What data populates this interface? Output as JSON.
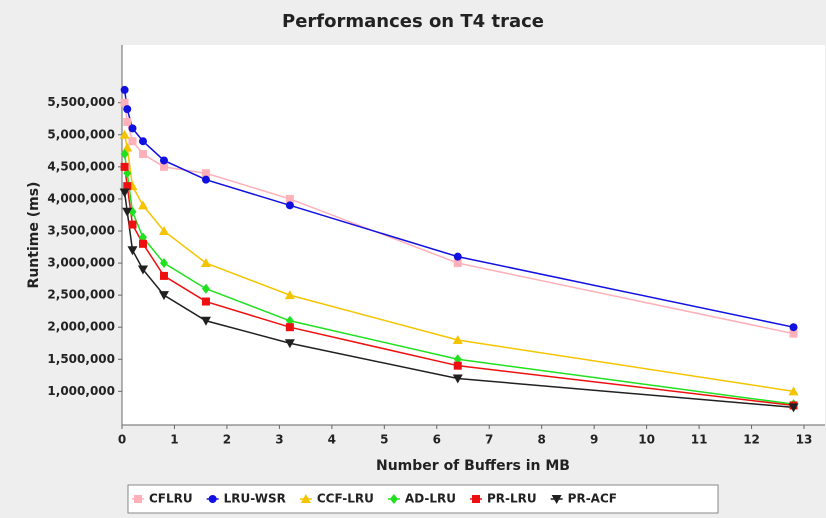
{
  "chart_data": {
    "type": "line",
    "title": "Performances on T4 trace",
    "xlabel": "Number of Buffers in MB",
    "ylabel": "Runtime (ms)",
    "x": [
      0.05,
      0.1,
      0.2,
      0.4,
      0.8,
      1.6,
      3.2,
      6.4,
      12.8
    ],
    "series": [
      {
        "name": "CFLRU",
        "color": "#ffb0b8",
        "marker": "square",
        "values": [
          5500000,
          5200000,
          4900000,
          4700000,
          4500000,
          4400000,
          4000000,
          3000000,
          1900000
        ]
      },
      {
        "name": "LRU-WSR",
        "color": "#1010e0",
        "marker": "circle",
        "values": [
          5700000,
          5400000,
          5100000,
          4900000,
          4600000,
          4300000,
          3900000,
          3100000,
          2000000
        ]
      },
      {
        "name": "CCF-LRU",
        "color": "#f5c400",
        "marker": "triangle-up",
        "values": [
          5000000,
          4800000,
          4200000,
          3900000,
          3500000,
          3000000,
          2500000,
          1800000,
          1000000
        ]
      },
      {
        "name": "AD-LRU",
        "color": "#20e020",
        "marker": "diamond",
        "values": [
          4700000,
          4400000,
          3800000,
          3400000,
          3000000,
          2600000,
          2100000,
          1500000,
          800000
        ]
      },
      {
        "name": "PR-LRU",
        "color": "#ee1010",
        "marker": "square",
        "values": [
          4500000,
          4200000,
          3600000,
          3300000,
          2800000,
          2400000,
          2000000,
          1400000,
          780000
        ]
      },
      {
        "name": "PR-ACF",
        "color": "#202020",
        "marker": "triangle-down",
        "values": [
          4100000,
          3800000,
          3200000,
          2900000,
          2500000,
          2100000,
          1750000,
          1200000,
          750000
        ]
      }
    ],
    "xlim": [
      0,
      13.4
    ],
    "xticks": [
      0,
      1,
      2,
      3,
      4,
      5,
      6,
      7,
      8,
      9,
      10,
      11,
      12,
      13
    ],
    "ylim": [
      475000,
      6400000
    ],
    "yticks": [
      {
        "value": 1000000,
        "label": "1,000,000"
      },
      {
        "value": 1500000,
        "label": "1,500,000"
      },
      {
        "value": 2000000,
        "label": "2,000,000"
      },
      {
        "value": 2500000,
        "label": "2,500,000"
      },
      {
        "value": 3000000,
        "label": "3,000,000"
      },
      {
        "value": 3500000,
        "label": "3,500,000"
      },
      {
        "value": 4000000,
        "label": "4,000,000"
      },
      {
        "value": 4500000,
        "label": "4,500,000"
      },
      {
        "value": 5000000,
        "label": "5,000,000"
      },
      {
        "value": 5500000,
        "label": "5,500,000"
      }
    ],
    "grid": false,
    "legend": "bottom"
  }
}
